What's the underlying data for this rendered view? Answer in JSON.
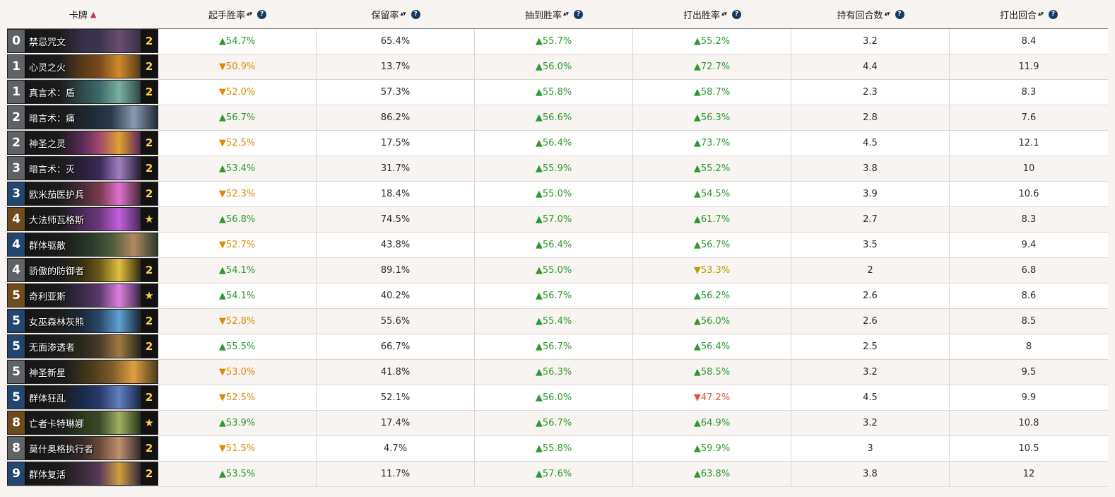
{
  "colors": {
    "up": "#2e9a2e",
    "down_orange": "#e08a0a",
    "down_yellow": "#b8a000",
    "down_red": "#e0533a",
    "help_icon": "#173b5e",
    "sort_active": "#c8323e"
  },
  "header": {
    "card": "卡牌",
    "card_sort": "▲",
    "sort_glyph": "▴▾",
    "help_glyph": "?",
    "columns": [
      "起手胜率",
      "保留率",
      "抽到胜率",
      "打出胜率",
      "持有回合数",
      "打出回合"
    ]
  },
  "rows": [
    {
      "cost": "0",
      "rarity": "epic",
      "name": "禁忌咒文",
      "count": "2",
      "art": [
        "#3b3550",
        "#6a4d6e",
        "#3a2f4a"
      ],
      "vals": [
        [
          "▲54.7%",
          "up"
        ],
        [
          "65.4%",
          "neutral"
        ],
        [
          "▲55.7%",
          "up"
        ],
        [
          "▲55.2%",
          "up"
        ],
        [
          "3.2",
          "neutral"
        ],
        [
          "8.4",
          "neutral"
        ]
      ]
    },
    {
      "cost": "1",
      "rarity": "common",
      "name": "心灵之火",
      "count": "2",
      "art": [
        "#7a4a1e",
        "#d08a2a",
        "#5a3a1a"
      ],
      "vals": [
        [
          "▼50.9%",
          "down-orange"
        ],
        [
          "13.7%",
          "neutral"
        ],
        [
          "▲56.0%",
          "up"
        ],
        [
          "▲72.7%",
          "up"
        ],
        [
          "4.4",
          "neutral"
        ],
        [
          "11.9",
          "neutral"
        ]
      ]
    },
    {
      "cost": "1",
      "rarity": "common",
      "name": "真言术：盾",
      "count": "2",
      "art": [
        "#3c6a6a",
        "#7ab0a0",
        "#2f4a4a"
      ],
      "vals": [
        [
          "▼52.0%",
          "down-orange"
        ],
        [
          "57.3%",
          "neutral"
        ],
        [
          "▲55.8%",
          "up"
        ],
        [
          "▲58.7%",
          "up"
        ],
        [
          "2.3",
          "neutral"
        ],
        [
          "8.3",
          "neutral"
        ]
      ]
    },
    {
      "cost": "2",
      "rarity": "common",
      "name": "暗言术：痛",
      "count": "",
      "art": [
        "#2a3a4a",
        "#8a9ab0",
        "#1f2a36"
      ],
      "vals": [
        [
          "▲56.7%",
          "up"
        ],
        [
          "86.2%",
          "neutral"
        ],
        [
          "▲56.6%",
          "up"
        ],
        [
          "▲56.3%",
          "up"
        ],
        [
          "2.8",
          "neutral"
        ],
        [
          "7.6",
          "neutral"
        ]
      ]
    },
    {
      "cost": "2",
      "rarity": "common",
      "name": "神圣之灵",
      "count": "2",
      "art": [
        "#a04a6a",
        "#e0a030",
        "#5a2a5a"
      ],
      "vals": [
        [
          "▼52.5%",
          "down-orange"
        ],
        [
          "17.5%",
          "neutral"
        ],
        [
          "▲56.4%",
          "up"
        ],
        [
          "▲73.7%",
          "up"
        ],
        [
          "4.5",
          "neutral"
        ],
        [
          "12.1",
          "neutral"
        ]
      ]
    },
    {
      "cost": "3",
      "rarity": "common",
      "name": "暗言术：灭",
      "count": "2",
      "art": [
        "#3a2a5a",
        "#a080c0",
        "#2a1f3a"
      ],
      "vals": [
        [
          "▲53.4%",
          "up"
        ],
        [
          "31.7%",
          "neutral"
        ],
        [
          "▲55.9%",
          "up"
        ],
        [
          "▲55.2%",
          "up"
        ],
        [
          "3.8",
          "neutral"
        ],
        [
          "10",
          "neutral"
        ]
      ]
    },
    {
      "cost": "3",
      "rarity": "rare",
      "name": "欧米茄医护兵",
      "count": "2",
      "art": [
        "#7a3a4a",
        "#e070d0",
        "#4a2a3a"
      ],
      "vals": [
        [
          "▼52.3%",
          "down-orange"
        ],
        [
          "18.4%",
          "neutral"
        ],
        [
          "▲55.0%",
          "up"
        ],
        [
          "▲54.5%",
          "up"
        ],
        [
          "3.9",
          "neutral"
        ],
        [
          "10.6",
          "neutral"
        ]
      ]
    },
    {
      "cost": "4",
      "rarity": "legendary",
      "name": "大法师瓦格斯",
      "count": "★",
      "art": [
        "#6a3a7a",
        "#c060e0",
        "#4a2a5a"
      ],
      "vals": [
        [
          "▲56.8%",
          "up"
        ],
        [
          "74.5%",
          "neutral"
        ],
        [
          "▲57.0%",
          "up"
        ],
        [
          "▲61.7%",
          "up"
        ],
        [
          "2.7",
          "neutral"
        ],
        [
          "8.3",
          "neutral"
        ]
      ]
    },
    {
      "cost": "4",
      "rarity": "rare",
      "name": "群体驱散",
      "count": "",
      "art": [
        "#4a5a3a",
        "#b08a60",
        "#2a3a2a"
      ],
      "vals": [
        [
          "▼52.7%",
          "down-orange"
        ],
        [
          "43.8%",
          "neutral"
        ],
        [
          "▲56.4%",
          "up"
        ],
        [
          "▲56.7%",
          "up"
        ],
        [
          "3.5",
          "neutral"
        ],
        [
          "9.4",
          "neutral"
        ]
      ]
    },
    {
      "cost": "4",
      "rarity": "common",
      "name": "骄傲的防御者",
      "count": "2",
      "art": [
        "#6a5a1a",
        "#e0c040",
        "#3a3010"
      ],
      "vals": [
        [
          "▲54.1%",
          "up"
        ],
        [
          "89.1%",
          "neutral"
        ],
        [
          "▲55.0%",
          "up"
        ],
        [
          "▼53.3%",
          "down-yellow"
        ],
        [
          "2",
          "neutral"
        ],
        [
          "6.8",
          "neutral"
        ]
      ]
    },
    {
      "cost": "5",
      "rarity": "legendary",
      "name": "奇利亚斯",
      "count": "★",
      "art": [
        "#5a3a6a",
        "#e080e0",
        "#3a2a4a"
      ],
      "vals": [
        [
          "▲54.1%",
          "up"
        ],
        [
          "40.2%",
          "neutral"
        ],
        [
          "▲56.7%",
          "up"
        ],
        [
          "▲56.2%",
          "up"
        ],
        [
          "2.6",
          "neutral"
        ],
        [
          "8.6",
          "neutral"
        ]
      ]
    },
    {
      "cost": "5",
      "rarity": "rare",
      "name": "女巫森林灰熊",
      "count": "2",
      "art": [
        "#2a4a6a",
        "#60a0d0",
        "#1a2a3a"
      ],
      "vals": [
        [
          "▼52.8%",
          "down-orange"
        ],
        [
          "55.6%",
          "neutral"
        ],
        [
          "▲55.4%",
          "up"
        ],
        [
          "▲56.0%",
          "up"
        ],
        [
          "2.6",
          "neutral"
        ],
        [
          "8.5",
          "neutral"
        ]
      ]
    },
    {
      "cost": "5",
      "rarity": "rare",
      "name": "无面渗透者",
      "count": "2",
      "art": [
        "#4a3a2a",
        "#a07a40",
        "#2a2a1a"
      ],
      "vals": [
        [
          "▲55.5%",
          "up"
        ],
        [
          "66.7%",
          "neutral"
        ],
        [
          "▲56.7%",
          "up"
        ],
        [
          "▲56.4%",
          "up"
        ],
        [
          "2.5",
          "neutral"
        ],
        [
          "8",
          "neutral"
        ]
      ]
    },
    {
      "cost": "5",
      "rarity": "common",
      "name": "神圣新星",
      "count": "",
      "art": [
        "#7a5a2a",
        "#e0a040",
        "#4a3a1a"
      ],
      "vals": [
        [
          "▼53.0%",
          "down-orange"
        ],
        [
          "41.8%",
          "neutral"
        ],
        [
          "▲56.3%",
          "up"
        ],
        [
          "▲58.5%",
          "up"
        ],
        [
          "3.2",
          "neutral"
        ],
        [
          "9.5",
          "neutral"
        ]
      ]
    },
    {
      "cost": "5",
      "rarity": "rare",
      "name": "群体狂乱",
      "count": "2",
      "art": [
        "#2a3a6a",
        "#6080c0",
        "#1a2a4a"
      ],
      "vals": [
        [
          "▼52.5%",
          "down-orange"
        ],
        [
          "52.1%",
          "neutral"
        ],
        [
          "▲56.0%",
          "up"
        ],
        [
          "▼47.2%",
          "down-red"
        ],
        [
          "4.5",
          "neutral"
        ],
        [
          "9.9",
          "neutral"
        ]
      ]
    },
    {
      "cost": "8",
      "rarity": "legendary",
      "name": "亡者卡特琳娜",
      "count": "★",
      "art": [
        "#3a4a2a",
        "#a0b060",
        "#2a3a1a"
      ],
      "vals": [
        [
          "▲53.9%",
          "up"
        ],
        [
          "17.4%",
          "neutral"
        ],
        [
          "▲56.7%",
          "up"
        ],
        [
          "▲64.9%",
          "up"
        ],
        [
          "3.2",
          "neutral"
        ],
        [
          "10.8",
          "neutral"
        ]
      ]
    },
    {
      "cost": "8",
      "rarity": "common",
      "name": "莫什奥格执行者",
      "count": "2",
      "art": [
        "#6a4a3a",
        "#c09070",
        "#3a2a2a"
      ],
      "vals": [
        [
          "▼51.5%",
          "down-orange"
        ],
        [
          "4.7%",
          "neutral"
        ],
        [
          "▲55.8%",
          "up"
        ],
        [
          "▲59.9%",
          "up"
        ],
        [
          "3",
          "neutral"
        ],
        [
          "10.5",
          "neutral"
        ]
      ]
    },
    {
      "cost": "9",
      "rarity": "rare",
      "name": "群体复活",
      "count": "2",
      "art": [
        "#5a3a5a",
        "#d0a040",
        "#3a2a3a"
      ],
      "vals": [
        [
          "▲53.5%",
          "up"
        ],
        [
          "11.7%",
          "neutral"
        ],
        [
          "▲57.6%",
          "up"
        ],
        [
          "▲63.8%",
          "up"
        ],
        [
          "3.8",
          "neutral"
        ],
        [
          "12",
          "neutral"
        ]
      ]
    }
  ]
}
